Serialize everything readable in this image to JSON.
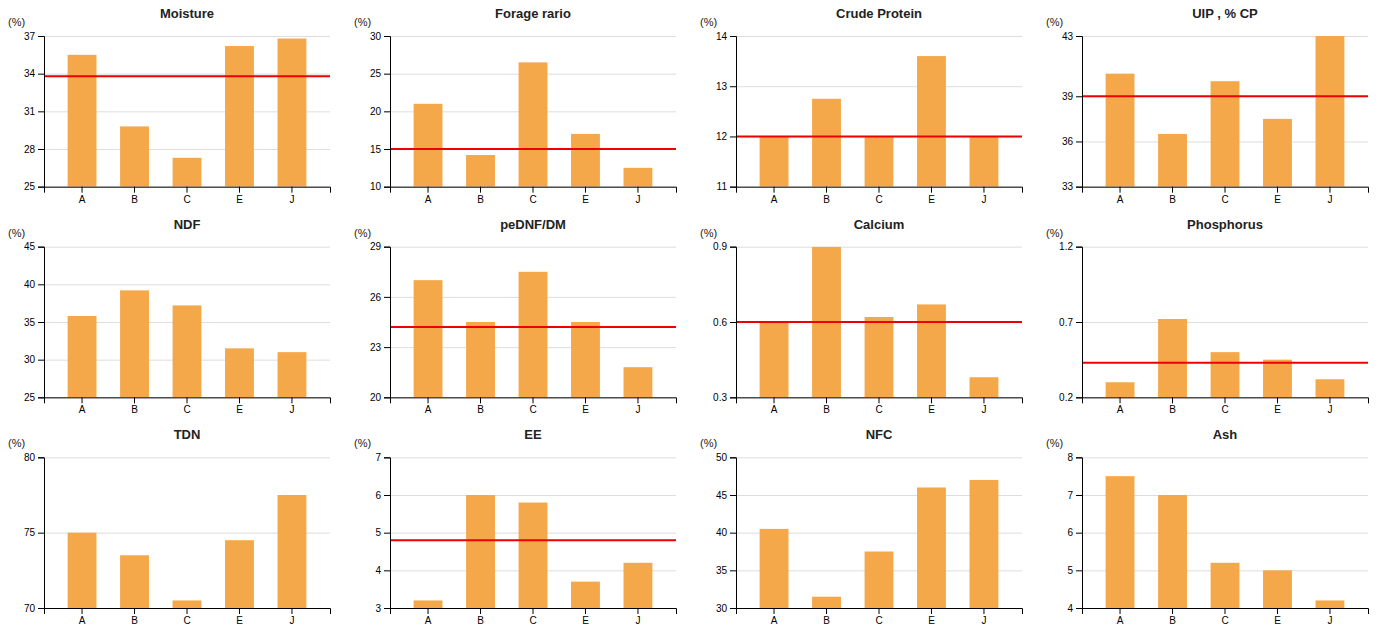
{
  "chart_data": [
    {
      "type": "bar",
      "title": "Moisture",
      "ylabel": "(%)",
      "categories": [
        "A",
        "B",
        "C",
        "E",
        "J"
      ],
      "values": [
        35.5,
        29.8,
        27.3,
        36.2,
        36.8
      ],
      "color": "#F5A84A",
      "ylim": [
        25,
        37
      ],
      "yticks": [
        25,
        28,
        31,
        34,
        37
      ],
      "grid": true,
      "reference_line": {
        "value": 33.8,
        "color": "#EE0000"
      }
    },
    {
      "type": "bar",
      "title": "Forage rario",
      "ylabel": "(%)",
      "categories": [
        "A",
        "B",
        "C",
        "E",
        "J"
      ],
      "values": [
        21.0,
        14.2,
        26.5,
        17.0,
        12.5
      ],
      "color": "#F5A84A",
      "ylim": [
        10,
        30
      ],
      "yticks": [
        10,
        15,
        20,
        25,
        30
      ],
      "grid": true,
      "reference_line": {
        "value": 15.0,
        "color": "#EE0000"
      }
    },
    {
      "type": "bar",
      "title": "Crude Protein",
      "ylabel": "(%)",
      "categories": [
        "A",
        "B",
        "C",
        "E",
        "J"
      ],
      "values": [
        12.0,
        12.75,
        12.0,
        13.6,
        12.0
      ],
      "color": "#F5A84A",
      "ylim": [
        11,
        14
      ],
      "yticks": [
        11,
        12,
        13,
        14
      ],
      "grid": true,
      "reference_line": {
        "value": 12.0,
        "color": "#EE0000"
      }
    },
    {
      "type": "bar",
      "title": "UIP , % CP",
      "ylabel": "(%)",
      "categories": [
        "A",
        "B",
        "C",
        "E",
        "J"
      ],
      "values": [
        40.5,
        36.5,
        40.0,
        37.5,
        43.0
      ],
      "color": "#F5A84A",
      "ylim": [
        33,
        43
      ],
      "yticks": [
        33,
        36,
        39,
        43
      ],
      "grid": true,
      "reference_line": {
        "value": 39.0,
        "color": "#EE0000"
      }
    },
    {
      "type": "bar",
      "title": "NDF",
      "ylabel": "(%)",
      "categories": [
        "A",
        "B",
        "C",
        "E",
        "J"
      ],
      "values": [
        35.8,
        39.2,
        37.2,
        31.5,
        31.0
      ],
      "color": "#F5A84A",
      "ylim": [
        25,
        45
      ],
      "yticks": [
        25,
        30,
        35,
        40,
        45
      ],
      "grid": true
    },
    {
      "type": "bar",
      "title": "peDNF/DM",
      "ylabel": "(%)",
      "categories": [
        "A",
        "B",
        "C",
        "E",
        "J"
      ],
      "values": [
        27.0,
        24.5,
        27.5,
        24.5,
        21.8
      ],
      "color": "#F5A84A",
      "ylim": [
        20,
        29
      ],
      "yticks": [
        20,
        23,
        26,
        29
      ],
      "grid": true,
      "reference_line": {
        "value": 24.2,
        "color": "#EE0000"
      }
    },
    {
      "type": "bar",
      "title": "Calcium",
      "ylabel": "(%)",
      "categories": [
        "A",
        "B",
        "C",
        "E",
        "J"
      ],
      "values": [
        0.6,
        0.9,
        0.62,
        0.67,
        0.38
      ],
      "color": "#F5A84A",
      "ylim": [
        0.3,
        0.9
      ],
      "yticks": [
        0.3,
        0.6,
        0.9
      ],
      "grid": true,
      "reference_line": {
        "value": 0.6,
        "color": "#EE0000"
      }
    },
    {
      "type": "bar",
      "title": "Phosphorus",
      "ylabel": "(%)",
      "categories": [
        "A",
        "B",
        "C",
        "E",
        "J"
      ],
      "values": [
        0.3,
        0.72,
        0.5,
        0.45,
        0.32
      ],
      "color": "#F5A84A",
      "ylim": [
        0.2,
        1.2
      ],
      "yticks": [
        0.2,
        0.7,
        1.2
      ],
      "grid": true,
      "reference_line": {
        "value": 0.43,
        "color": "#EE0000"
      }
    },
    {
      "type": "bar",
      "title": "TDN",
      "ylabel": "(%)",
      "categories": [
        "A",
        "B",
        "C",
        "E",
        "J"
      ],
      "values": [
        75.0,
        73.5,
        70.5,
        74.5,
        77.5
      ],
      "color": "#F5A84A",
      "ylim": [
        70,
        80
      ],
      "yticks": [
        70,
        75,
        80
      ],
      "grid": true
    },
    {
      "type": "bar",
      "title": "EE",
      "ylabel": "(%)",
      "categories": [
        "A",
        "B",
        "C",
        "E",
        "J"
      ],
      "values": [
        3.2,
        6.0,
        5.8,
        3.7,
        4.2
      ],
      "color": "#F5A84A",
      "ylim": [
        3,
        7
      ],
      "yticks": [
        3,
        4,
        5,
        6,
        7
      ],
      "grid": true,
      "reference_line": {
        "value": 4.8,
        "color": "#EE0000"
      }
    },
    {
      "type": "bar",
      "title": "NFC",
      "ylabel": "(%)",
      "categories": [
        "A",
        "B",
        "C",
        "E",
        "J"
      ],
      "values": [
        40.5,
        31.5,
        37.5,
        46.0,
        47.0
      ],
      "color": "#F5A84A",
      "ylim": [
        30,
        50
      ],
      "yticks": [
        30,
        35,
        40,
        45,
        50
      ],
      "grid": true
    },
    {
      "type": "bar",
      "title": "Ash",
      "ylabel": "(%)",
      "categories": [
        "A",
        "B",
        "C",
        "E",
        "J"
      ],
      "values": [
        7.5,
        7.0,
        5.2,
        5.0,
        4.2
      ],
      "color": "#F5A84A",
      "ylim": [
        4,
        8
      ],
      "yticks": [
        4,
        5,
        6,
        7,
        8
      ],
      "grid": true
    }
  ]
}
